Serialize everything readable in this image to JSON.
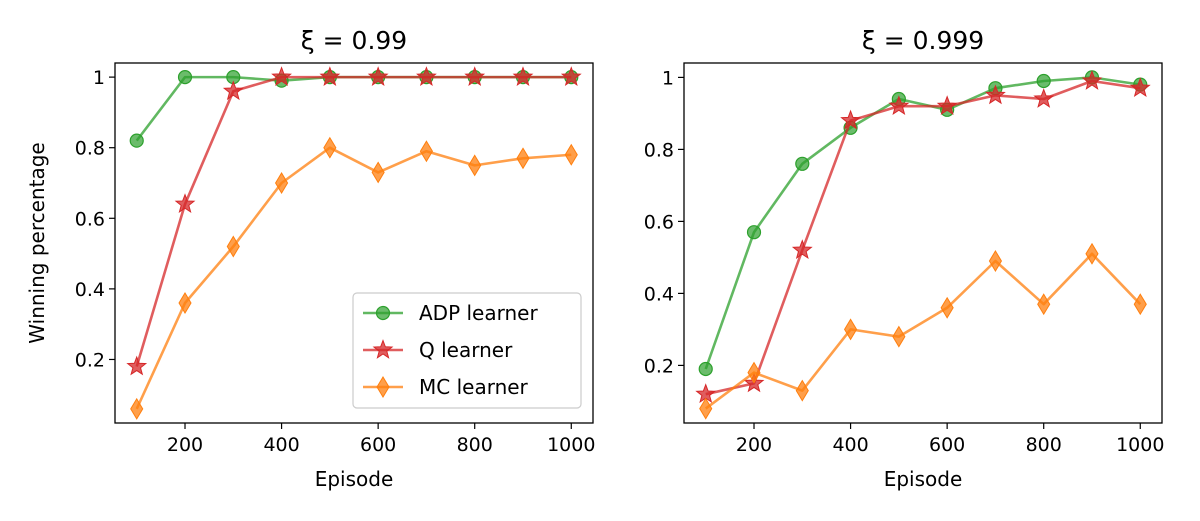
{
  "chart_data": [
    {
      "type": "line",
      "title": "ξ = 0.99",
      "xlabel": "Episode",
      "ylabel": "Winning percentage",
      "xlim": [
        55,
        1045
      ],
      "ylim": [
        0.02,
        1.04
      ],
      "xticks": [
        200,
        400,
        600,
        800,
        1000
      ],
      "yticks": [
        0.2,
        0.4,
        0.6,
        0.8,
        1.0
      ],
      "x": [
        100,
        200,
        300,
        400,
        500,
        600,
        700,
        800,
        900,
        1000
      ],
      "legend": "lower-right",
      "series": [
        {
          "name": "ADP learner",
          "color": "#2ca02c",
          "marker": "circle",
          "values": [
            0.82,
            1.0,
            1.0,
            0.99,
            1.0,
            1.0,
            1.0,
            1.0,
            1.0,
            1.0
          ]
        },
        {
          "name": "Q learner",
          "color": "#d62728",
          "marker": "star",
          "values": [
            0.18,
            0.64,
            0.96,
            1.0,
            1.0,
            1.0,
            1.0,
            1.0,
            1.0,
            1.0
          ]
        },
        {
          "name": "MC learner",
          "color": "#ff7f0e",
          "marker": "diamond",
          "values": [
            0.06,
            0.36,
            0.52,
            0.7,
            0.8,
            0.73,
            0.79,
            0.75,
            0.77,
            0.78
          ]
        }
      ]
    },
    {
      "type": "line",
      "title": "ξ = 0.999",
      "xlabel": "Episode",
      "ylabel": "",
      "xlim": [
        55,
        1045
      ],
      "ylim": [
        0.04,
        1.04
      ],
      "xticks": [
        200,
        400,
        600,
        800,
        1000
      ],
      "yticks": [
        0.2,
        0.4,
        0.6,
        0.8,
        1.0
      ],
      "x": [
        100,
        200,
        300,
        400,
        500,
        600,
        700,
        800,
        900,
        1000
      ],
      "legend": "none",
      "series": [
        {
          "name": "ADP learner",
          "color": "#2ca02c",
          "marker": "circle",
          "values": [
            0.19,
            0.57,
            0.76,
            0.86,
            0.94,
            0.91,
            0.97,
            0.99,
            1.0,
            0.98
          ]
        },
        {
          "name": "Q learner",
          "color": "#d62728",
          "marker": "star",
          "values": [
            0.12,
            0.15,
            0.52,
            0.88,
            0.92,
            0.92,
            0.95,
            0.94,
            0.99,
            0.97
          ]
        },
        {
          "name": "MC learner",
          "color": "#ff7f0e",
          "marker": "diamond",
          "values": [
            0.08,
            0.18,
            0.13,
            0.3,
            0.28,
            0.36,
            0.49,
            0.37,
            0.51,
            0.37
          ]
        }
      ]
    }
  ]
}
